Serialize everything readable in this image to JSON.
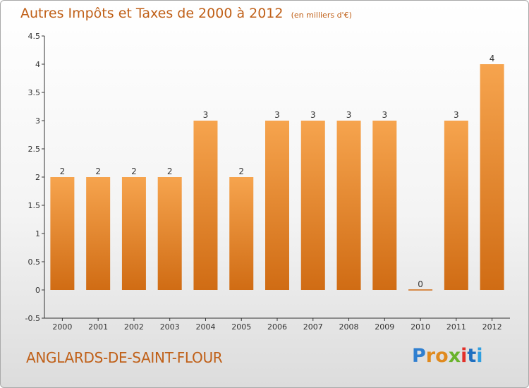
{
  "header": {
    "title": "Autres Impôts et Taxes de 2000 à 2012",
    "unit": "(en milliers d'€)"
  },
  "footer": {
    "commune": "ANGLARDS-DE-SAINT-FLOUR",
    "logo": "Proxiti",
    "logo_colors": [
      "#2f7fd0",
      "#e08a1e",
      "#e08a1e",
      "#69b32c",
      "#e2302a",
      "#1f6fc0",
      "#2f9fe0"
    ]
  },
  "colors": {
    "bar_light": "#f6a44e",
    "bar_dark": "#d06c14",
    "accent": "#c06018"
  },
  "chart_data": {
    "type": "bar",
    "title": "Autres Impôts et Taxes de 2000 à 2012",
    "subtitle": "(en milliers d'€)",
    "categories": [
      "2000",
      "2001",
      "2002",
      "2003",
      "2004",
      "2005",
      "2006",
      "2007",
      "2008",
      "2009",
      "2010",
      "2011",
      "2012"
    ],
    "values": [
      2,
      2,
      2,
      2,
      3,
      2,
      3,
      3,
      3,
      3,
      0,
      3,
      4
    ],
    "data_labels": [
      "2",
      "2",
      "2",
      "2",
      "3",
      "2",
      "3",
      "3",
      "3",
      "3",
      "0",
      "3",
      "4"
    ],
    "ylim": [
      -0.5,
      4.5
    ],
    "yticks": [
      "-0.5",
      "0",
      "0.5",
      "1",
      "1.5",
      "2",
      "2.5",
      "3",
      "3.5",
      "4",
      "4.5"
    ],
    "ytick_values": [
      -0.5,
      0,
      0.5,
      1,
      1.5,
      2,
      2.5,
      3,
      3.5,
      4,
      4.5
    ],
    "xlabel": "",
    "ylabel": "",
    "grid": false,
    "legend": "none"
  }
}
